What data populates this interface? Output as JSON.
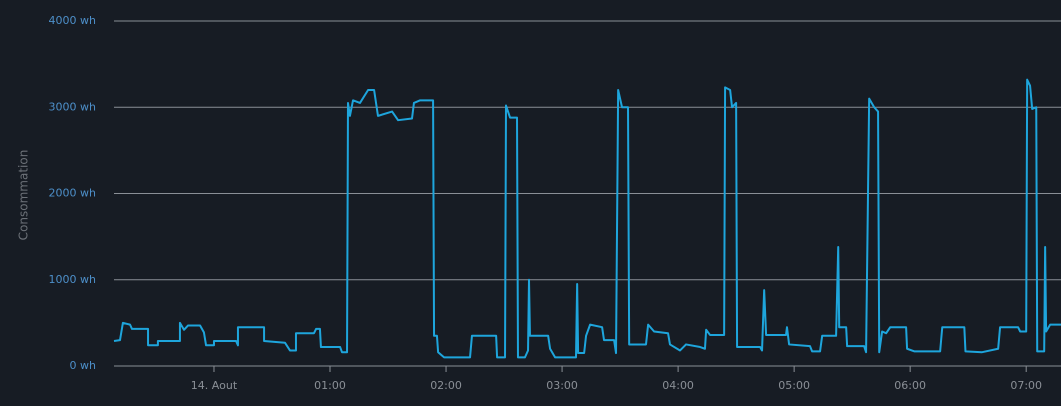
{
  "chart_data": {
    "type": "line",
    "ylabel": "Consommation",
    "x": [
      -51.7,
      -48.6,
      -47.1,
      -43.4,
      -42.4,
      -34.1,
      -34.1,
      -29,
      -29,
      -17.6,
      -17.6,
      -15.5,
      -13.4,
      -7.2,
      -5.2,
      -4.1,
      0,
      0,
      11.4,
      12.4,
      12.4,
      25.9,
      25.9,
      36.7,
      39.3,
      42.4,
      42.4,
      51.7,
      52.8,
      54.8,
      55.3,
      65.2,
      66.2,
      68.8,
      69.3,
      70.3,
      71.9,
      75.5,
      79.7,
      82.8,
      84.8,
      92.1,
      95.2,
      102.4,
      103.4,
      106.6,
      113.3,
      113.8,
      115.3,
      115.9,
      119,
      132.4,
      133.4,
      145.9,
      146.4,
      150.5,
      151,
      153.1,
      156.7,
      157.2,
      160.8,
      162.4,
      162.9,
      163.4,
      172.8,
      173.8,
      176.4,
      187.2,
      187.8,
      188.3,
      191.4,
      192.4,
      194.5,
      200.7,
      201.7,
      206.9,
      207.9,
      209,
      211,
      214.1,
      214.7,
      223.4,
      224.5,
      227.6,
      234.8,
      235.8,
      241,
      244.1,
      251.4,
      253.9,
      254.5,
      256.5,
      263.8,
      264.3,
      266.9,
      267.9,
      270,
      270.5,
      282.4,
      283.4,
      284.5,
      285.5,
      295.8,
      296.3,
      297.4,
      308.2,
      309.3,
      313.4,
      314.5,
      321.7,
      322.8,
      323.3,
      326.9,
      327.4,
      336.2,
      337.2,
      338.8,
      341.4,
      343.4,
      344,
      345.5,
      347.6,
      349.7,
      357.9,
      358.4,
      362.1,
      375.5,
      376.6,
      388,
      388.6,
      397.2,
      405.5,
      406.5,
      415.8,
      416.9,
      420,
      420.5,
      422,
      423.1,
      425.2,
      425.7,
      429.3,
      429.8,
      430.3,
      432.4,
      438
    ],
    "series": [
      {
        "name": "Consommation",
        "color": "#1ea5dc",
        "values": [
          290,
          300,
          500,
          480,
          430,
          430,
          240,
          240,
          290,
          290,
          500,
          420,
          470,
          470,
          390,
          240,
          240,
          290,
          290,
          240,
          450,
          450,
          290,
          270,
          180,
          180,
          380,
          380,
          430,
          430,
          220,
          220,
          160,
          160,
          3050,
          2900,
          3080,
          3050,
          3200,
          3200,
          2900,
          2950,
          2850,
          2870,
          3050,
          3080,
          3080,
          350,
          350,
          160,
          100,
          100,
          350,
          350,
          100,
          100,
          3020,
          2880,
          2880,
          100,
          100,
          180,
          1000,
          350,
          350,
          200,
          100,
          100,
          950,
          150,
          150,
          350,
          480,
          450,
          300,
          300,
          150,
          3200,
          3000,
          3000,
          250,
          250,
          480,
          400,
          380,
          250,
          180,
          250,
          220,
          200,
          420,
          360,
          360,
          3230,
          3200,
          3000,
          3050,
          220,
          220,
          180,
          880,
          360,
          360,
          450,
          250,
          230,
          170,
          170,
          350,
          350,
          1380,
          450,
          450,
          230,
          230,
          160,
          3100,
          3000,
          2950,
          160,
          400,
          380,
          450,
          450,
          200,
          170,
          170,
          450,
          450,
          170,
          160,
          200,
          450,
          450,
          400,
          400,
          3320,
          3250,
          2980,
          3000,
          170,
          170,
          1380,
          400,
          480,
          480
        ]
      }
    ],
    "xlim": [
      -51.7,
      438
    ],
    "xticks": [
      {
        "value": 0,
        "label": "14. Aout"
      },
      {
        "value": 60,
        "label": "01:00"
      },
      {
        "value": 120,
        "label": "02:00"
      },
      {
        "value": 180,
        "label": "03:00"
      },
      {
        "value": 240,
        "label": "04:00"
      },
      {
        "value": 300,
        "label": "05:00"
      },
      {
        "value": 360,
        "label": "06:00"
      },
      {
        "value": 420,
        "label": "07:00"
      }
    ],
    "ylim": [
      0,
      4000
    ],
    "yticks": [
      {
        "value": 0,
        "label": "0 wh"
      },
      {
        "value": 1000,
        "label": "1000 wh"
      },
      {
        "value": 2000,
        "label": "2000 wh"
      },
      {
        "value": 3000,
        "label": "3000 wh"
      },
      {
        "value": 4000,
        "label": "4000 wh"
      }
    ],
    "grid": true
  }
}
